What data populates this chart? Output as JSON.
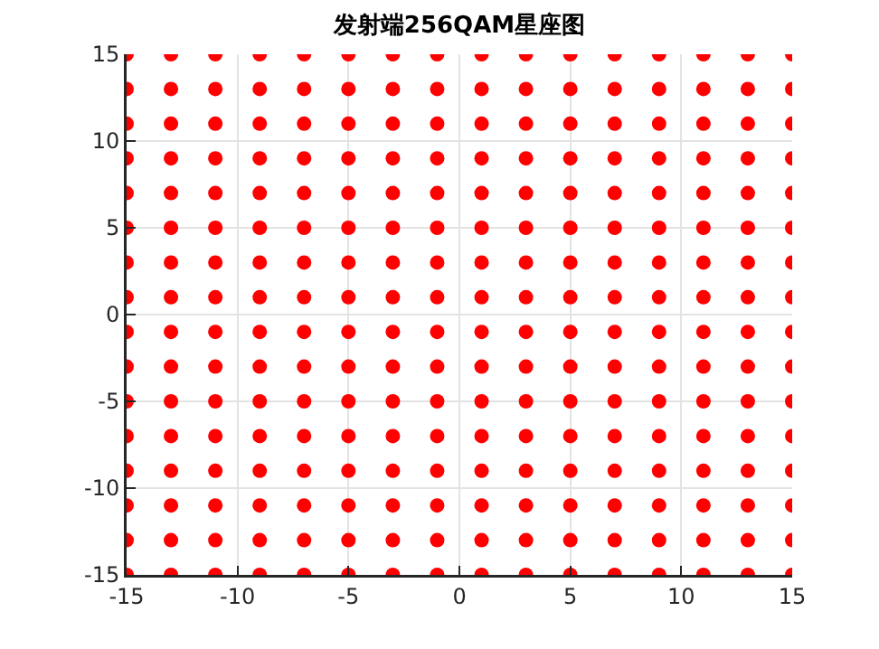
{
  "chart_data": {
    "type": "scatter",
    "title": "发射端256QAM星座图",
    "x": [
      -15,
      -13,
      -11,
      -9,
      -7,
      -5,
      -3,
      -1,
      1,
      3,
      5,
      7,
      9,
      11,
      13,
      15,
      -15,
      -13,
      -11,
      -9,
      -7,
      -5,
      -3,
      -1,
      1,
      3,
      5,
      7,
      9,
      11,
      13,
      15,
      -15,
      -13,
      -11,
      -9,
      -7,
      -5,
      -3,
      -1,
      1,
      3,
      5,
      7,
      9,
      11,
      13,
      15,
      -15,
      -13,
      -11,
      -9,
      -7,
      -5,
      -3,
      -1,
      1,
      3,
      5,
      7,
      9,
      11,
      13,
      15,
      -15,
      -13,
      -11,
      -9,
      -7,
      -5,
      -3,
      -1,
      1,
      3,
      5,
      7,
      9,
      11,
      13,
      15,
      -15,
      -13,
      -11,
      -9,
      -7,
      -5,
      -3,
      -1,
      1,
      3,
      5,
      7,
      9,
      11,
      13,
      15,
      -15,
      -13,
      -11,
      -9,
      -7,
      -5,
      -3,
      -1,
      1,
      3,
      5,
      7,
      9,
      11,
      13,
      15,
      -15,
      -13,
      -11,
      -9,
      -7,
      -5,
      -3,
      -1,
      1,
      3,
      5,
      7,
      9,
      11,
      13,
      15,
      -15,
      -13,
      -11,
      -9,
      -7,
      -5,
      -3,
      -1,
      1,
      3,
      5,
      7,
      9,
      11,
      13,
      15,
      -15,
      -13,
      -11,
      -9,
      -7,
      -5,
      -3,
      -1,
      1,
      3,
      5,
      7,
      9,
      11,
      13,
      15,
      -15,
      -13,
      -11,
      -9,
      -7,
      -5,
      -3,
      -1,
      1,
      3,
      5,
      7,
      9,
      11,
      13,
      15,
      -15,
      -13,
      -11,
      -9,
      -7,
      -5,
      -3,
      -1,
      1,
      3,
      5,
      7,
      9,
      11,
      13,
      15,
      -15,
      -13,
      -11,
      -9,
      -7,
      -5,
      -3,
      -1,
      1,
      3,
      5,
      7,
      9,
      11,
      13,
      15,
      -15,
      -13,
      -11,
      -9,
      -7,
      -5,
      -3,
      -1,
      1,
      3,
      5,
      7,
      9,
      11,
      13,
      15,
      -15,
      -13,
      -11,
      -9,
      -7,
      -5,
      -3,
      -1,
      1,
      3,
      5,
      7,
      9,
      11,
      13,
      15,
      -15,
      -13,
      -11,
      -9,
      -7,
      -5,
      -3,
      -1,
      1,
      3,
      5,
      7,
      9,
      11,
      13,
      15
    ],
    "series": [
      {
        "color": "#ff0000",
        "values": [
          -15,
          -15,
          -15,
          -15,
          -15,
          -15,
          -15,
          -15,
          -15,
          -15,
          -15,
          -15,
          -15,
          -15,
          -15,
          -15,
          -13,
          -13,
          -13,
          -13,
          -13,
          -13,
          -13,
          -13,
          -13,
          -13,
          -13,
          -13,
          -13,
          -13,
          -13,
          -13,
          -11,
          -11,
          -11,
          -11,
          -11,
          -11,
          -11,
          -11,
          -11,
          -11,
          -11,
          -11,
          -11,
          -11,
          -11,
          -11,
          -9,
          -9,
          -9,
          -9,
          -9,
          -9,
          -9,
          -9,
          -9,
          -9,
          -9,
          -9,
          -9,
          -9,
          -9,
          -9,
          -7,
          -7,
          -7,
          -7,
          -7,
          -7,
          -7,
          -7,
          -7,
          -7,
          -7,
          -7,
          -7,
          -7,
          -7,
          -7,
          -5,
          -5,
          -5,
          -5,
          -5,
          -5,
          -5,
          -5,
          -5,
          -5,
          -5,
          -5,
          -5,
          -5,
          -5,
          -5,
          -3,
          -3,
          -3,
          -3,
          -3,
          -3,
          -3,
          -3,
          -3,
          -3,
          -3,
          -3,
          -3,
          -3,
          -3,
          -3,
          -1,
          -1,
          -1,
          -1,
          -1,
          -1,
          -1,
          -1,
          -1,
          -1,
          -1,
          -1,
          -1,
          -1,
          -1,
          -1,
          1,
          1,
          1,
          1,
          1,
          1,
          1,
          1,
          1,
          1,
          1,
          1,
          1,
          1,
          1,
          1,
          3,
          3,
          3,
          3,
          3,
          3,
          3,
          3,
          3,
          3,
          3,
          3,
          3,
          3,
          3,
          3,
          5,
          5,
          5,
          5,
          5,
          5,
          5,
          5,
          5,
          5,
          5,
          5,
          5,
          5,
          5,
          5,
          7,
          7,
          7,
          7,
          7,
          7,
          7,
          7,
          7,
          7,
          7,
          7,
          7,
          7,
          7,
          7,
          9,
          9,
          9,
          9,
          9,
          9,
          9,
          9,
          9,
          9,
          9,
          9,
          9,
          9,
          9,
          9,
          11,
          11,
          11,
          11,
          11,
          11,
          11,
          11,
          11,
          11,
          11,
          11,
          11,
          11,
          11,
          11,
          13,
          13,
          13,
          13,
          13,
          13,
          13,
          13,
          13,
          13,
          13,
          13,
          13,
          13,
          13,
          13,
          15,
          15,
          15,
          15,
          15,
          15,
          15,
          15,
          15,
          15,
          15,
          15,
          15,
          15,
          15,
          15
        ]
      }
    ],
    "xlim": [
      -15,
      15
    ],
    "ylim": [
      -15,
      15
    ],
    "xticks": [
      -15,
      -10,
      -5,
      0,
      5,
      10,
      15
    ],
    "yticks": [
      -15,
      -10,
      -5,
      0,
      5,
      10,
      15
    ],
    "grid": true,
    "marker": "circle"
  }
}
